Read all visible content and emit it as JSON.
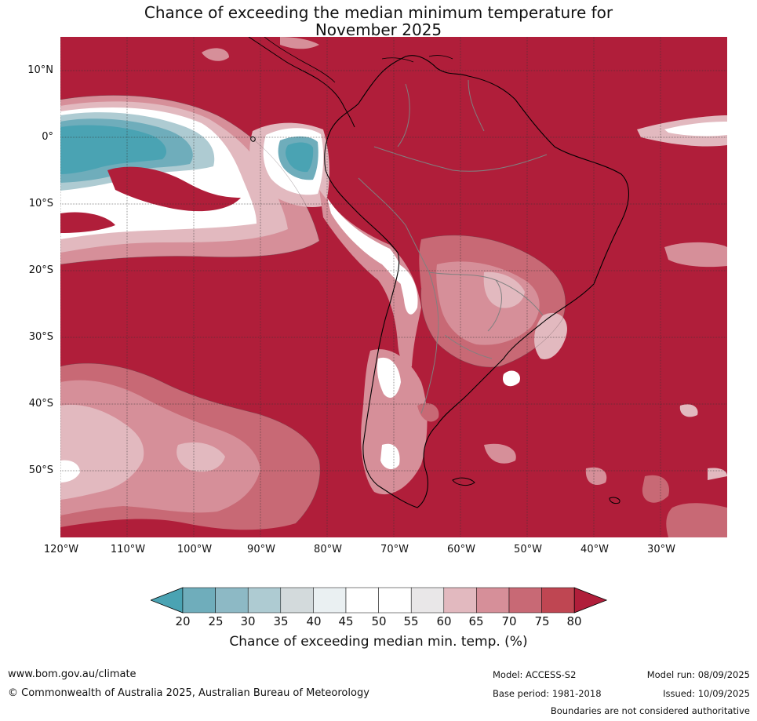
{
  "title": {
    "line1": "Chance of exceeding the median minimum temperature for",
    "line2": "November 2025"
  },
  "map": {
    "region": "South America and surrounding oceans",
    "background_class": "above 80% chance",
    "colors": {
      "ocean_land_dominant": "#b01e3a",
      "coastline": "#000000",
      "borders": "#808080",
      "gridlines": "#333333"
    },
    "lat_labels": [
      "10°N",
      "0°",
      "10°S",
      "20°S",
      "30°S",
      "40°S",
      "50°S"
    ],
    "lon_labels": [
      "120°W",
      "110°W",
      "100°W",
      "90°W",
      "80°W",
      "70°W",
      "60°W",
      "50°W",
      "40°W",
      "30°W"
    ]
  },
  "colorbar": {
    "extend": "both",
    "ticks": [
      "20",
      "25",
      "30",
      "35",
      "40",
      "45",
      "50",
      "55",
      "60",
      "65",
      "70",
      "75",
      "80"
    ],
    "colors": [
      "#4aa3b3",
      "#6fadbb",
      "#8db9c5",
      "#aecbd2",
      "#d3dadc",
      "#eaf0f2",
      "#ffffff",
      "#ffffff",
      "#e9e7e8",
      "#e2b9bf",
      "#d68f99",
      "#c86975",
      "#bf4652",
      "#b01e3a"
    ],
    "label": "Chance of exceeding median min. temp. (%)"
  },
  "footer": {
    "website": "www.bom.gov.au/climate",
    "copyright": "© Commonwealth of Australia 2025, Australian Bureau of Meteorology",
    "model": "Model: ACCESS-S2",
    "base_period": "Base period: 1981-2018",
    "model_run": "Model run: 08/09/2025",
    "issued": "Issued: 10/09/2025",
    "disclaimer": "Boundaries are not considered authoritative"
  }
}
